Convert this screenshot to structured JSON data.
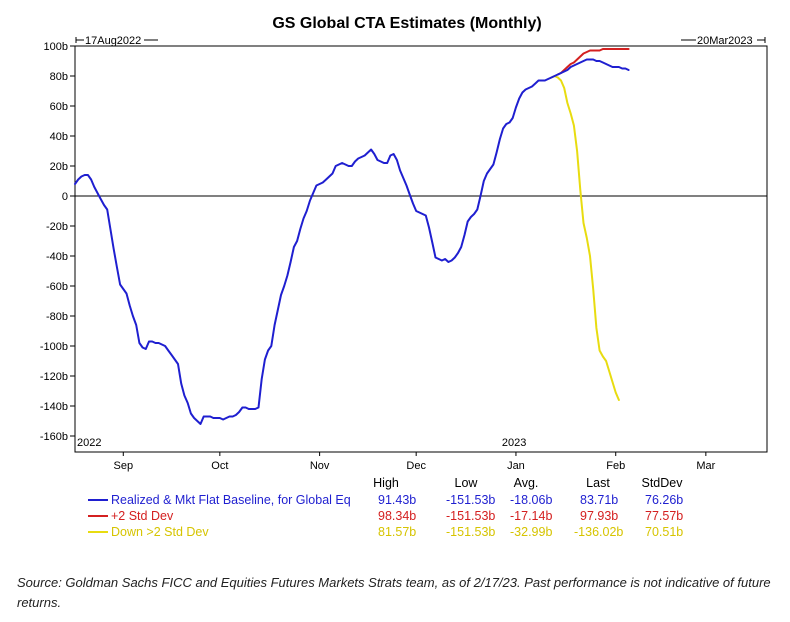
{
  "chart_data": {
    "type": "line",
    "title": "GS Global CTA Estimates (Monthly)",
    "start_date_label": "17Aug2022",
    "end_date_label": "20Mar2023",
    "ylim": [
      -160,
      100
    ],
    "y_ticks": [
      100,
      80,
      60,
      40,
      20,
      0,
      -20,
      -40,
      -60,
      -80,
      -100,
      -120,
      -140,
      -160
    ],
    "y_tick_labels": [
      "100b",
      "80b",
      "60b",
      "40b",
      "20b",
      "0",
      "-20b",
      "-40b",
      "-60b",
      "-80b",
      "-100b",
      "-120b",
      "-140b",
      "-160b"
    ],
    "year_labels": [
      {
        "label": "2022",
        "x": 0
      },
      {
        "label": "2023",
        "x": 132
      }
    ],
    "x_ticks": [
      {
        "label": "Sep",
        "x": 15
      },
      {
        "label": "Oct",
        "x": 45
      },
      {
        "label": "Nov",
        "x": 76
      },
      {
        "label": "Dec",
        "x": 106
      },
      {
        "label": "Jan",
        "x": 137
      },
      {
        "label": "Feb",
        "x": 168
      },
      {
        "label": "Mar",
        "x": 196
      }
    ],
    "xlim": [
      0,
      215
    ],
    "legend_headers": [
      "High",
      "Low",
      "Avg.",
      "Last",
      "StdDev"
    ],
    "series": [
      {
        "name": "Realized & Mkt Flat Baseline, for Global Eq",
        "color": "#1f1fd0",
        "stats": [
          "91.43b",
          "-151.53b",
          "-18.06b",
          "83.71b",
          "76.26b"
        ],
        "points": [
          [
            0,
            8
          ],
          [
            1,
            11
          ],
          [
            2,
            13
          ],
          [
            3,
            14
          ],
          [
            4,
            14
          ],
          [
            5,
            11
          ],
          [
            6,
            6
          ],
          [
            7,
            2
          ],
          [
            8,
            -2
          ],
          [
            9,
            -6
          ],
          [
            10,
            -9
          ],
          [
            11,
            -22
          ],
          [
            12,
            -35
          ],
          [
            13,
            -47
          ],
          [
            14,
            -59
          ],
          [
            15,
            -62
          ],
          [
            16,
            -65
          ],
          [
            17,
            -73
          ],
          [
            18,
            -80
          ],
          [
            19,
            -86
          ],
          [
            20,
            -98
          ],
          [
            21,
            -101
          ],
          [
            22,
            -102
          ],
          [
            23,
            -97
          ],
          [
            24,
            -97
          ],
          [
            25,
            -98
          ],
          [
            26,
            -98
          ],
          [
            27,
            -99
          ],
          [
            28,
            -100
          ],
          [
            29,
            -103
          ],
          [
            30,
            -106
          ],
          [
            31,
            -109
          ],
          [
            32,
            -112
          ],
          [
            33,
            -125
          ],
          [
            34,
            -133
          ],
          [
            35,
            -138
          ],
          [
            36,
            -145
          ],
          [
            37,
            -148
          ],
          [
            38,
            -150
          ],
          [
            39,
            -152
          ],
          [
            40,
            -147
          ],
          [
            41,
            -147
          ],
          [
            42,
            -147
          ],
          [
            43,
            -148
          ],
          [
            44,
            -148
          ],
          [
            45,
            -148
          ],
          [
            46,
            -149
          ],
          [
            47,
            -148
          ],
          [
            48,
            -147
          ],
          [
            49,
            -147
          ],
          [
            50,
            -146
          ],
          [
            51,
            -144
          ],
          [
            52,
            -141
          ],
          [
            53,
            -141
          ],
          [
            54,
            -142
          ],
          [
            55,
            -142
          ],
          [
            56,
            -142
          ],
          [
            57,
            -141
          ],
          [
            58,
            -122
          ],
          [
            59,
            -109
          ],
          [
            60,
            -103
          ],
          [
            61,
            -100
          ],
          [
            62,
            -86
          ],
          [
            63,
            -76
          ],
          [
            64,
            -66
          ],
          [
            65,
            -60
          ],
          [
            66,
            -53
          ],
          [
            67,
            -44
          ],
          [
            68,
            -34
          ],
          [
            69,
            -30
          ],
          [
            70,
            -22
          ],
          [
            71,
            -15
          ],
          [
            72,
            -10
          ],
          [
            73,
            -3
          ],
          [
            74,
            2
          ],
          [
            75,
            7
          ],
          [
            76,
            8
          ],
          [
            77,
            9
          ],
          [
            78,
            11
          ],
          [
            79,
            13
          ],
          [
            80,
            15
          ],
          [
            81,
            20
          ],
          [
            82,
            21
          ],
          [
            83,
            22
          ],
          [
            84,
            21
          ],
          [
            85,
            20
          ],
          [
            86,
            20
          ],
          [
            87,
            23
          ],
          [
            88,
            25
          ],
          [
            89,
            26
          ],
          [
            90,
            27
          ],
          [
            91,
            29
          ],
          [
            92,
            31
          ],
          [
            93,
            28
          ],
          [
            94,
            24
          ],
          [
            95,
            23
          ],
          [
            96,
            22
          ],
          [
            97,
            22
          ],
          [
            98,
            27
          ],
          [
            99,
            28
          ],
          [
            100,
            24
          ],
          [
            101,
            17
          ],
          [
            102,
            12
          ],
          [
            103,
            7
          ],
          [
            104,
            1
          ],
          [
            105,
            -5
          ],
          [
            106,
            -10
          ],
          [
            107,
            -11
          ],
          [
            108,
            -12
          ],
          [
            109,
            -13
          ],
          [
            110,
            -21
          ],
          [
            111,
            -31
          ],
          [
            112,
            -41
          ],
          [
            113,
            -42
          ],
          [
            114,
            -43
          ],
          [
            115,
            -42
          ],
          [
            116,
            -44
          ],
          [
            117,
            -43
          ],
          [
            118,
            -41
          ],
          [
            119,
            -38
          ],
          [
            120,
            -34
          ],
          [
            121,
            -26
          ],
          [
            122,
            -17
          ],
          [
            123,
            -14
          ],
          [
            124,
            -12
          ],
          [
            125,
            -9
          ],
          [
            126,
            0
          ],
          [
            127,
            10
          ],
          [
            128,
            15
          ],
          [
            129,
            18
          ],
          [
            130,
            21
          ],
          [
            131,
            29
          ],
          [
            132,
            38
          ],
          [
            133,
            45
          ],
          [
            134,
            48
          ],
          [
            135,
            49
          ],
          [
            136,
            52
          ],
          [
            137,
            59
          ],
          [
            138,
            65
          ],
          [
            139,
            69
          ],
          [
            140,
            71
          ],
          [
            141,
            72
          ],
          [
            142,
            73
          ],
          [
            143,
            75
          ],
          [
            144,
            77
          ],
          [
            145,
            77
          ],
          [
            146,
            77
          ],
          [
            147,
            78
          ],
          [
            148,
            79
          ],
          [
            149,
            80
          ],
          [
            150,
            81
          ],
          [
            151,
            82
          ],
          [
            152,
            83
          ],
          [
            153,
            84
          ],
          [
            154,
            86
          ],
          [
            155,
            87
          ],
          [
            156,
            88
          ],
          [
            157,
            89
          ],
          [
            158,
            90
          ],
          [
            159,
            91
          ],
          [
            160,
            91
          ],
          [
            161,
            91
          ],
          [
            162,
            90
          ],
          [
            163,
            90
          ],
          [
            164,
            89
          ],
          [
            165,
            88
          ],
          [
            166,
            87
          ],
          [
            167,
            86
          ],
          [
            168,
            86
          ],
          [
            169,
            86
          ],
          [
            170,
            85
          ],
          [
            171,
            85
          ],
          [
            172,
            84
          ]
        ]
      },
      {
        "name": "+2 Std Dev",
        "color": "#d42020",
        "stats": [
          "98.34b",
          "-151.53b",
          "-17.14b",
          "97.93b",
          "77.57b"
        ],
        "points": [
          [
            150,
            81
          ],
          [
            151,
            82
          ],
          [
            152,
            84
          ],
          [
            153,
            86
          ],
          [
            154,
            88
          ],
          [
            155,
            89
          ],
          [
            156,
            91
          ],
          [
            157,
            93
          ],
          [
            158,
            95
          ],
          [
            159,
            96
          ],
          [
            160,
            97
          ],
          [
            161,
            97
          ],
          [
            162,
            97
          ],
          [
            163,
            97
          ],
          [
            164,
            98
          ],
          [
            165,
            98
          ],
          [
            166,
            98
          ],
          [
            167,
            98
          ],
          [
            168,
            98
          ],
          [
            169,
            98
          ],
          [
            170,
            98
          ],
          [
            171,
            98
          ],
          [
            172,
            98
          ]
        ]
      },
      {
        "name": "Down >2 Std Dev",
        "color": "#e8dc10",
        "stats": [
          "81.57b",
          "-151.53b",
          "-32.99b",
          "-136.02b",
          "70.51b"
        ],
        "points": [
          [
            148,
            79
          ],
          [
            149,
            80
          ],
          [
            150,
            79
          ],
          [
            151,
            77
          ],
          [
            152,
            72
          ],
          [
            153,
            62
          ],
          [
            154,
            55
          ],
          [
            155,
            47
          ],
          [
            156,
            30
          ],
          [
            157,
            4
          ],
          [
            158,
            -18
          ],
          [
            159,
            -28
          ],
          [
            160,
            -40
          ],
          [
            161,
            -62
          ],
          [
            162,
            -88
          ],
          [
            163,
            -103
          ],
          [
            164,
            -107
          ],
          [
            165,
            -110
          ],
          [
            166,
            -117
          ],
          [
            167,
            -124
          ],
          [
            168,
            -131
          ],
          [
            169,
            -136
          ]
        ]
      }
    ],
    "annotation": "Source: Goldman Sachs FICC and Equities Futures Markets Strats team, as of 2/17/23. Past performance is not indicative of future returns."
  }
}
